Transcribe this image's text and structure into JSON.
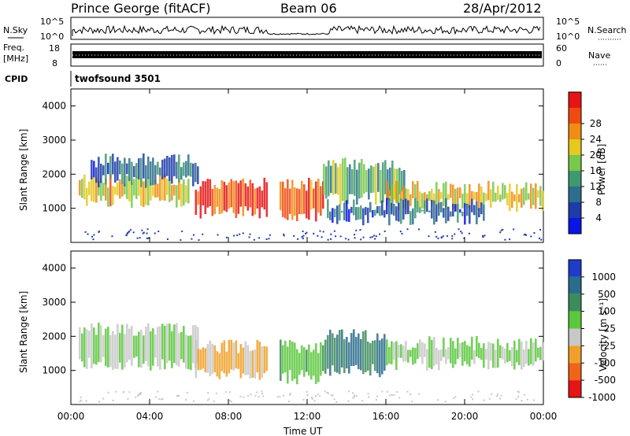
{
  "header": {
    "station": "Prince George (fitACF)",
    "beam": "Beam 06",
    "date": "28/Apr/2012"
  },
  "panels": {
    "nsky_label": "N.Sky",
    "nsearch_label": "N.Search",
    "nsky_ticks": [
      "10^5",
      "10^0"
    ],
    "nsearch_ticks": [
      "10^5",
      "10^0"
    ],
    "freq_label_1": "Freq.",
    "freq_label_2": "[MHz]",
    "freq_ticks": [
      "18",
      "8"
    ],
    "nave_label": "Nave",
    "nave_ticks": [
      "60",
      "0"
    ],
    "cpid_label": "CPID",
    "cpid_value": "twofsound 3501"
  },
  "chart_data": [
    {
      "type": "heatmap",
      "title": "",
      "xlabel": "",
      "ylabel": "Slant Range [km]",
      "ylim": [
        0,
        4500
      ],
      "yticks": [
        1000,
        2000,
        3000,
        4000
      ],
      "colorbar_label": "Power [dB]",
      "colorbar_ticks": [
        4,
        8,
        12,
        16,
        20,
        24,
        28
      ],
      "colorbar_colors": [
        "#0a14e6",
        "#1e3ca8",
        "#2c6e8c",
        "#3e9a6e",
        "#78c84a",
        "#e6c81e",
        "#f08c14",
        "#f04a10",
        "#e61414"
      ],
      "regions": [
        {
          "t0": 0.4,
          "t1": 6.0,
          "r0": 1200,
          "r1": 1800,
          "power": 20
        },
        {
          "t0": 1.0,
          "t1": 6.5,
          "r0": 1800,
          "r1": 2400,
          "power": 8
        },
        {
          "t0": 6.3,
          "t1": 10.0,
          "r0": 900,
          "r1": 1700,
          "power": 28
        },
        {
          "t0": 10.6,
          "t1": 12.8,
          "r0": 800,
          "r1": 1700,
          "power": 26
        },
        {
          "t0": 12.8,
          "t1": 17.0,
          "r0": 1300,
          "r1": 2300,
          "power": 14
        },
        {
          "t0": 16.0,
          "t1": 24.0,
          "r0": 1100,
          "r1": 1600,
          "power": 20
        },
        {
          "t0": 13.0,
          "t1": 21.0,
          "r0": 700,
          "r1": 1100,
          "power": 8
        }
      ]
    },
    {
      "type": "heatmap",
      "title": "",
      "xlabel": "Time UT",
      "ylabel": "Slant Range [km]",
      "xlim": [
        "00:00",
        "24:00"
      ],
      "xticks": [
        "00:00",
        "04:00",
        "08:00",
        "12:00",
        "16:00",
        "20:00",
        "00:00"
      ],
      "ylim": [
        0,
        4500
      ],
      "yticks": [
        1000,
        2000,
        3000,
        4000
      ],
      "colorbar_label": "Velocity [m s⁻¹]",
      "colorbar_ticks": [
        1000,
        500,
        100,
        25,
        -25,
        -100,
        -500,
        -1000
      ],
      "colorbar_colors": [
        "#1e3cc8",
        "#2a6c8c",
        "#3c8c5a",
        "#5ac83c",
        "#c8c8c8",
        "#f0a028",
        "#f06418",
        "#e61414"
      ],
      "regions": [
        {
          "t0": 0.4,
          "t1": 6.5,
          "r0": 1200,
          "r1": 2200,
          "velocity": 0
        },
        {
          "t0": 6.3,
          "t1": 10.0,
          "r0": 900,
          "r1": 1700,
          "velocity": -300
        },
        {
          "t0": 10.6,
          "t1": 13.0,
          "r0": 800,
          "r1": 1700,
          "velocity": 200
        },
        {
          "t0": 13.0,
          "t1": 16.0,
          "r0": 1000,
          "r1": 2000,
          "velocity": 500
        },
        {
          "t0": 16.0,
          "t1": 24.0,
          "r0": 1200,
          "r1": 1800,
          "velocity": 0
        }
      ]
    }
  ]
}
